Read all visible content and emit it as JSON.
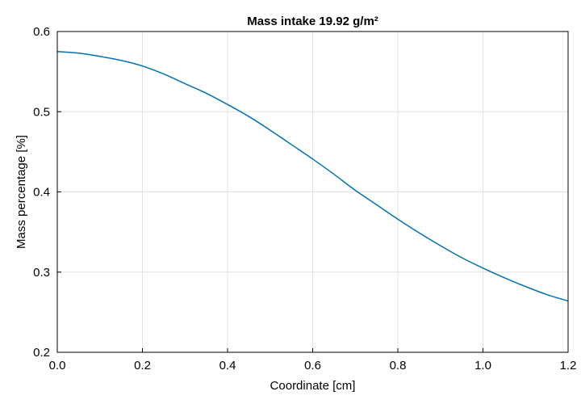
{
  "chart_data": {
    "type": "line",
    "title": "Mass intake 19.92 g/m²",
    "xlabel": "Coordinate [cm]",
    "ylabel": "Mass percentage [%]",
    "xlim": [
      0,
      1.2
    ],
    "ylim": [
      0.2,
      0.6
    ],
    "xticks": [
      "0.0",
      "0.2",
      "0.4",
      "0.6",
      "0.8",
      "1.0",
      "1.2"
    ],
    "yticks": [
      "0.2",
      "0.3",
      "0.4",
      "0.5",
      "0.6"
    ],
    "grid": true,
    "line_color": "#0072b2",
    "series": [
      {
        "x": [
          0.0,
          0.05,
          0.1,
          0.15,
          0.2,
          0.25,
          0.3,
          0.35,
          0.4,
          0.45,
          0.5,
          0.55,
          0.6,
          0.65,
          0.7,
          0.75,
          0.8,
          0.85,
          0.9,
          0.95,
          1.0,
          1.05,
          1.1,
          1.15,
          1.2
        ],
        "values": [
          0.575,
          0.573,
          0.569,
          0.564,
          0.557,
          0.547,
          0.535,
          0.523,
          0.509,
          0.494,
          0.477,
          0.459,
          0.441,
          0.422,
          0.402,
          0.384,
          0.366,
          0.349,
          0.333,
          0.318,
          0.305,
          0.293,
          0.282,
          0.272,
          0.264
        ]
      }
    ]
  }
}
